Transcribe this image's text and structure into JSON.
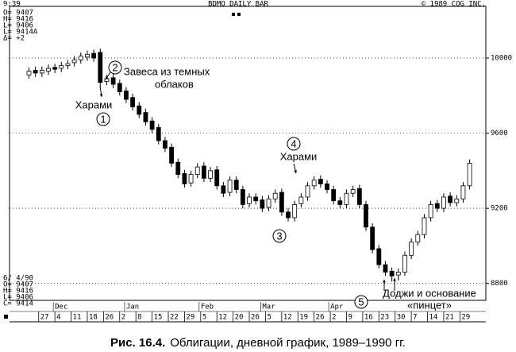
{
  "chart_data": {
    "type": "candlestick",
    "header": {
      "time": "9:39",
      "title": "BDMO DAILY BAR",
      "copyright": "©  1989 CQG INC."
    },
    "info_top": [
      "O= 9407",
      "H= 9416",
      "L= 9406",
      "L= 9414A",
      "Δ=   +2"
    ],
    "info_bottom": [
      "6/ 4/90",
      "O= 9407",
      "H= 9416",
      "L= 9406",
      "C= 9414"
    ],
    "caption_label": "Рис. 16.4.",
    "caption": "Облигации, дневной график, 1989–1990 гг.",
    "annotations": [
      "1",
      "2",
      "3",
      "4",
      "5",
      "Харами",
      "Харами",
      "Завеса из темных",
      "облаков",
      "Доджи и основание",
      "«пинцет»"
    ],
    "up_color": "#ffffff",
    "down_color": "#000000",
    "grid": true,
    "xlim": [
      -9,
      138
    ],
    "ylim": [
      8710,
      10275
    ],
    "yticks": [
      8800,
      9200,
      9600,
      10000
    ],
    "xticks": [
      {
        "value": 0,
        "label": "27"
      },
      {
        "value": 5,
        "label": "4"
      },
      {
        "value": 10,
        "label": "11"
      },
      {
        "value": 15,
        "label": "18"
      },
      {
        "value": 20,
        "label": "26"
      },
      {
        "value": 25,
        "label": "2"
      },
      {
        "value": 30,
        "label": "8"
      },
      {
        "value": 35,
        "label": "15"
      },
      {
        "value": 40,
        "label": "22"
      },
      {
        "value": 45,
        "label": "29"
      },
      {
        "value": 50,
        "label": "5"
      },
      {
        "value": 55,
        "label": "12"
      },
      {
        "value": 60,
        "label": "20"
      },
      {
        "value": 65,
        "label": "26"
      },
      {
        "value": 70,
        "label": "5"
      },
      {
        "value": 75,
        "label": "12"
      },
      {
        "value": 80,
        "label": "19"
      },
      {
        "value": 85,
        "label": "26"
      },
      {
        "value": 90,
        "label": "2"
      },
      {
        "value": 95,
        "label": "9"
      },
      {
        "value": 100,
        "label": "16"
      },
      {
        "value": 105,
        "label": "23"
      },
      {
        "value": 110,
        "label": "30"
      },
      {
        "value": 115,
        "label": "7"
      },
      {
        "value": 120,
        "label": "14"
      },
      {
        "value": 125,
        "label": "21"
      },
      {
        "value": 130,
        "label": "29"
      }
    ],
    "month_labels": [
      {
        "value": 5,
        "label": "Dec"
      },
      {
        "value": 27,
        "label": "Jan"
      },
      {
        "value": 50,
        "label": "Feb"
      },
      {
        "value": 69,
        "label": "Mar"
      },
      {
        "value": 90,
        "label": "Apr"
      }
    ],
    "x": [
      -3,
      -1,
      1,
      3,
      5,
      7,
      9,
      11,
      13,
      15,
      17,
      19,
      21,
      23,
      25,
      27,
      29,
      31,
      33,
      35,
      37,
      39,
      41,
      43,
      45,
      47,
      49,
      51,
      53,
      55,
      57,
      59,
      61,
      63,
      65,
      67,
      69,
      71,
      73,
      75,
      77,
      79,
      81,
      83,
      85,
      87,
      89,
      91,
      93,
      95,
      97,
      99,
      101,
      103,
      105,
      107,
      109,
      111,
      113,
      115,
      117,
      119,
      121,
      123,
      125,
      127,
      129,
      131,
      133
    ],
    "open": [
      9910,
      9935,
      9920,
      9930,
      9950,
      9945,
      9960,
      9975,
      9990,
      10005,
      10025,
      10030,
      9875,
      9895,
      9865,
      9825,
      9790,
      9745,
      9710,
      9665,
      9630,
      9560,
      9525,
      9445,
      9385,
      9335,
      9380,
      9425,
      9360,
      9405,
      9320,
      9285,
      9350,
      9300,
      9225,
      9260,
      9245,
      9205,
      9250,
      9285,
      9180,
      9150,
      9225,
      9260,
      9320,
      9355,
      9330,
      9300,
      9240,
      9220,
      9280,
      9305,
      9220,
      9100,
      8985,
      8900,
      8865,
      8845,
      8860,
      8950,
      9020,
      9060,
      9150,
      9225,
      9200,
      9265,
      9230,
      9250,
      9320
    ],
    "high": [
      9950,
      9955,
      9955,
      9965,
      9970,
      9980,
      9990,
      10010,
      10030,
      10040,
      10045,
      10050,
      9910,
      9915,
      9885,
      9845,
      9810,
      9765,
      9730,
      9685,
      9650,
      9580,
      9545,
      9465,
      9405,
      9400,
      9440,
      9445,
      9420,
      9425,
      9340,
      9370,
      9370,
      9320,
      9280,
      9280,
      9265,
      9270,
      9300,
      9305,
      9200,
      9240,
      9280,
      9340,
      9370,
      9375,
      9350,
      9320,
      9260,
      9300,
      9320,
      9325,
      9240,
      9120,
      9005,
      8920,
      8885,
      8880,
      8970,
      9040,
      9080,
      9170,
      9240,
      9245,
      9280,
      9285,
      9270,
      9340,
      9460
    ],
    "low": [
      9890,
      9900,
      9900,
      9910,
      9920,
      9925,
      9940,
      9955,
      9970,
      9985,
      9980,
      9850,
      9855,
      9840,
      9800,
      9760,
      9720,
      9680,
      9640,
      9600,
      9540,
      9500,
      9420,
      9360,
      9310,
      9315,
      9360,
      9340,
      9340,
      9300,
      9260,
      9265,
      9280,
      9200,
      9205,
      9220,
      9180,
      9185,
      9230,
      9160,
      9130,
      9130,
      9205,
      9240,
      9300,
      9310,
      9280,
      9220,
      9200,
      9200,
      9260,
      9200,
      9080,
      8960,
      8880,
      8840,
      8810,
      8815,
      8840,
      8930,
      9000,
      9040,
      9130,
      9180,
      9180,
      9210,
      9210,
      9230,
      9300
    ],
    "close": [
      9930,
      9920,
      9935,
      9945,
      9940,
      9960,
      9970,
      9990,
      10010,
      10020,
      10000,
      9870,
      9890,
      9860,
      9820,
      9780,
      9740,
      9700,
      9660,
      9620,
      9560,
      9520,
      9440,
      9380,
      9330,
      9380,
      9420,
      9360,
      9400,
      9320,
      9280,
      9350,
      9300,
      9220,
      9260,
      9240,
      9200,
      9250,
      9280,
      9180,
      9150,
      9220,
      9260,
      9320,
      9350,
      9330,
      9300,
      9240,
      9220,
      9280,
      9300,
      9220,
      9100,
      8980,
      8900,
      8860,
      8840,
      8860,
      8950,
      9020,
      9060,
      9150,
      9220,
      9200,
      9260,
      9230,
      9250,
      9320,
      9440
    ]
  }
}
